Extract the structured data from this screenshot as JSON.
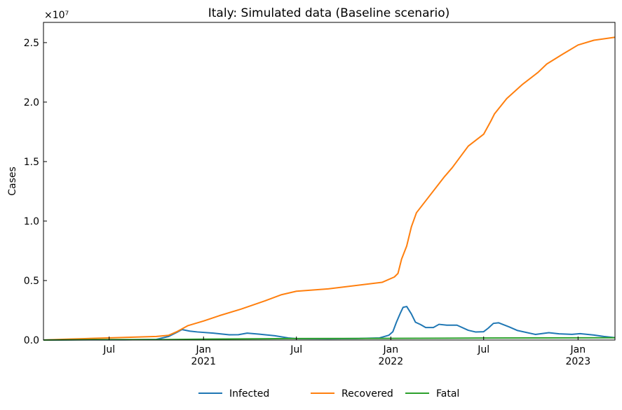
{
  "chart_data": {
    "type": "line",
    "title": "Italy: Simulated data (Baseline scenario)",
    "xlabel": "",
    "ylabel": "Cases",
    "y_multiplier_label": "×10⁷",
    "xlim": [
      "2020-02-24",
      "2023-03-14"
    ],
    "ylim": [
      0,
      26700000.0
    ],
    "x_ticks": [
      {
        "date": "2020-07-01",
        "label": "Jul",
        "sublabel": ""
      },
      {
        "date": "2021-01-01",
        "label": "Jan",
        "sublabel": "2021"
      },
      {
        "date": "2021-07-01",
        "label": "Jul",
        "sublabel": ""
      },
      {
        "date": "2022-01-01",
        "label": "Jan",
        "sublabel": "2022"
      },
      {
        "date": "2022-07-01",
        "label": "Jul",
        "sublabel": ""
      },
      {
        "date": "2023-01-01",
        "label": "Jan",
        "sublabel": "2023"
      }
    ],
    "y_ticks": [
      {
        "value": 0,
        "label": "0.0"
      },
      {
        "value": 5000000,
        "label": "0.5"
      },
      {
        "value": 10000000,
        "label": "1.0"
      },
      {
        "value": 15000000,
        "label": "1.5"
      },
      {
        "value": 20000000,
        "label": "2.0"
      },
      {
        "value": 25000000,
        "label": "2.5"
      }
    ],
    "grid": false,
    "legend_position": "bottom-center",
    "series": [
      {
        "name": "Infected",
        "color": "#1f77b4",
        "points": [
          [
            "2020-02-24",
            0
          ],
          [
            "2020-05-01",
            20000
          ],
          [
            "2020-08-01",
            20000
          ],
          [
            "2020-10-01",
            50000
          ],
          [
            "2020-10-25",
            300000
          ],
          [
            "2020-11-10",
            650000
          ],
          [
            "2020-11-20",
            880000
          ],
          [
            "2020-12-05",
            750000
          ],
          [
            "2020-12-20",
            680000
          ],
          [
            "2021-01-20",
            580000
          ],
          [
            "2021-02-20",
            440000
          ],
          [
            "2021-03-10",
            450000
          ],
          [
            "2021-03-27",
            580000
          ],
          [
            "2021-04-20",
            490000
          ],
          [
            "2021-05-20",
            360000
          ],
          [
            "2021-06-15",
            180000
          ],
          [
            "2021-07-01",
            120000
          ],
          [
            "2021-09-01",
            110000
          ],
          [
            "2021-11-01",
            130000
          ],
          [
            "2021-12-10",
            180000
          ],
          [
            "2021-12-28",
            400000
          ],
          [
            "2022-01-05",
            700000
          ],
          [
            "2022-01-12",
            1500000
          ],
          [
            "2022-01-20",
            2300000
          ],
          [
            "2022-01-25",
            2750000
          ],
          [
            "2022-02-01",
            2820000
          ],
          [
            "2022-02-10",
            2200000
          ],
          [
            "2022-02-18",
            1500000
          ],
          [
            "2022-02-28",
            1300000
          ],
          [
            "2022-03-10",
            1050000
          ],
          [
            "2022-03-25",
            1050000
          ],
          [
            "2022-04-05",
            1320000
          ],
          [
            "2022-04-20",
            1250000
          ],
          [
            "2022-05-10",
            1250000
          ],
          [
            "2022-06-01",
            820000
          ],
          [
            "2022-06-15",
            680000
          ],
          [
            "2022-07-01",
            700000
          ],
          [
            "2022-07-10",
            1000000
          ],
          [
            "2022-07-20",
            1400000
          ],
          [
            "2022-07-30",
            1450000
          ],
          [
            "2022-08-20",
            1100000
          ],
          [
            "2022-09-05",
            800000
          ],
          [
            "2022-10-10",
            470000
          ],
          [
            "2022-11-05",
            620000
          ],
          [
            "2022-11-25",
            520000
          ],
          [
            "2022-12-20",
            480000
          ],
          [
            "2023-01-05",
            540000
          ],
          [
            "2023-02-01",
            420000
          ],
          [
            "2023-02-20",
            300000
          ],
          [
            "2023-03-14",
            200000
          ]
        ]
      },
      {
        "name": "Recovered",
        "color": "#ff7f0e",
        "points": [
          [
            "2020-02-24",
            0
          ],
          [
            "2020-04-15",
            80000
          ],
          [
            "2020-05-15",
            120000
          ],
          [
            "2020-07-15",
            200000
          ],
          [
            "2020-10-01",
            300000
          ],
          [
            "2020-10-25",
            400000
          ],
          [
            "2020-11-10",
            700000
          ],
          [
            "2020-12-01",
            1200000
          ],
          [
            "2021-01-01",
            1600000
          ],
          [
            "2021-02-01",
            2050000
          ],
          [
            "2021-03-15",
            2600000
          ],
          [
            "2021-05-01",
            3300000
          ],
          [
            "2021-06-01",
            3800000
          ],
          [
            "2021-07-01",
            4100000
          ],
          [
            "2021-09-01",
            4300000
          ],
          [
            "2021-12-15",
            4850000
          ],
          [
            "2022-01-08",
            5300000
          ],
          [
            "2022-01-15",
            5600000
          ],
          [
            "2022-01-22",
            6800000
          ],
          [
            "2022-02-01",
            7900000
          ],
          [
            "2022-02-10",
            9500000
          ],
          [
            "2022-02-20",
            10700000
          ],
          [
            "2022-03-10",
            11700000
          ],
          [
            "2022-04-15",
            13700000
          ],
          [
            "2022-05-01",
            14500000
          ],
          [
            "2022-06-01",
            16300000
          ],
          [
            "2022-07-01",
            17300000
          ],
          [
            "2022-07-15",
            18400000
          ],
          [
            "2022-07-22",
            19000000
          ],
          [
            "2022-08-15",
            20300000
          ],
          [
            "2022-09-15",
            21500000
          ],
          [
            "2022-10-15",
            22500000
          ],
          [
            "2022-11-01",
            23200000
          ],
          [
            "2022-12-01",
            24000000
          ],
          [
            "2023-01-01",
            24800000
          ],
          [
            "2023-02-01",
            25200000
          ],
          [
            "2023-03-14",
            25450000
          ]
        ]
      },
      {
        "name": "Fatal",
        "color": "#2ca02c",
        "points": [
          [
            "2020-02-24",
            0
          ],
          [
            "2020-06-01",
            35000
          ],
          [
            "2020-10-15",
            40000
          ],
          [
            "2021-01-15",
            80000
          ],
          [
            "2021-06-15",
            125000
          ],
          [
            "2022-01-01",
            140000
          ],
          [
            "2022-07-01",
            170000
          ],
          [
            "2023-03-14",
            188000
          ]
        ]
      }
    ]
  }
}
